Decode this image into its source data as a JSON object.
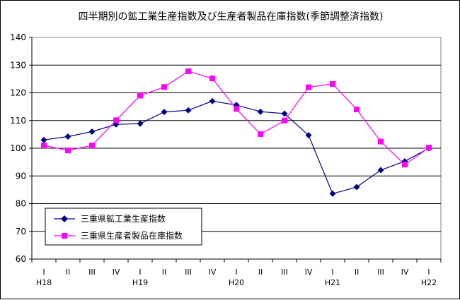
{
  "chart_data": {
    "type": "line",
    "title": "四半期別の鉱工業生産指数及び生産者製品在庫指数(季節調整済指数)",
    "xlabel": "",
    "ylabel": "",
    "ylim": [
      60,
      140
    ],
    "yticks": [
      60,
      70,
      80,
      90,
      100,
      110,
      120,
      130,
      140
    ],
    "grid": true,
    "legend_position": "bottom-left",
    "categories": [
      "I",
      "II",
      "III",
      "IV",
      "I",
      "II",
      "III",
      "IV",
      "I",
      "II",
      "III",
      "IV",
      "I",
      "II",
      "III",
      "IV",
      "I"
    ],
    "year_labels": [
      "H18",
      "",
      "",
      "",
      "H19",
      "",
      "",
      "",
      "H20",
      "",
      "",
      "",
      "H21",
      "",
      "",
      "",
      "H22"
    ],
    "series": [
      {
        "name": "三重県鉱工業生産指数",
        "color": "#000080",
        "marker": "diamond",
        "values": [
          103.0,
          104.2,
          106.0,
          108.6,
          108.9,
          113.1,
          113.7,
          117.0,
          115.6,
          113.2,
          112.5,
          104.7,
          83.6,
          86.0,
          92.1,
          95.3,
          100.0
        ]
      },
      {
        "name": "三重県生産者製品在庫指数",
        "color": "#ff00ff",
        "marker": "square",
        "values": [
          101.0,
          99.2,
          101.0,
          110.1,
          119.0,
          122.1,
          127.8,
          125.2,
          114.2,
          105.1,
          110.0,
          122.0,
          123.2,
          114.0,
          102.4,
          94.1,
          100.2
        ]
      }
    ]
  }
}
